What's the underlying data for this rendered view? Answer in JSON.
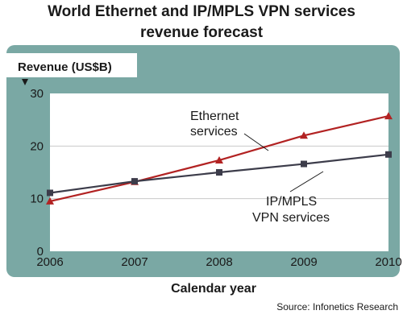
{
  "chart_data": {
    "type": "line",
    "title_lines": [
      "World Ethernet and IP/MPLS VPN services",
      "revenue forecast"
    ],
    "ylabel": "Revenue (US$B)",
    "xlabel": "Calendar year",
    "x": [
      "2006",
      "2007",
      "2008",
      "2009",
      "2010"
    ],
    "ylim": [
      0,
      30
    ],
    "yticks": [
      "0",
      "10",
      "20",
      "30"
    ],
    "grid": true,
    "series": [
      {
        "name": "Ethernet services",
        "label_lines": [
          "Ethernet",
          "services"
        ],
        "values": [
          9.5,
          13.2,
          17.3,
          22.0,
          25.7
        ],
        "color": "#b22222",
        "marker": "triangle"
      },
      {
        "name": "IP/MPLS VPN services",
        "label_lines": [
          "IP/MPLS",
          "VPN services"
        ],
        "values": [
          11.1,
          13.3,
          15.0,
          16.6,
          18.4
        ],
        "color": "#3c3c4a",
        "marker": "square"
      }
    ],
    "source": "Source:  Infonetics Research"
  },
  "colors": {
    "panel": "#7aa8a4",
    "plot_bg": "#ffffff",
    "grid": "#c9c9c9",
    "axis_marker": "#1a1a1a"
  }
}
